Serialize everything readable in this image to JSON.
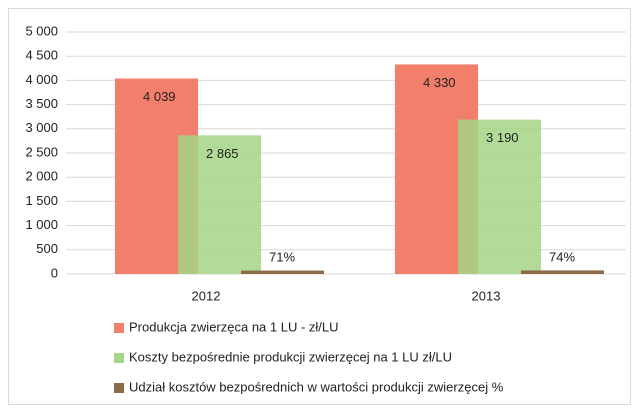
{
  "chart_data": {
    "type": "bar",
    "categories": [
      "2012",
      "2013"
    ],
    "series": [
      {
        "name": "Produkcja zwierzęca na 1 LU - zł/LU",
        "color": "#f27e6c",
        "values": [
          4039,
          4330
        ],
        "value_labels": [
          "4 039",
          "4 330"
        ]
      },
      {
        "name": "Koszty bezpośrednie produkcji zwierzęcej na 1 LU zł/LU",
        "color": "#a6d586",
        "values": [
          2865,
          3190
        ],
        "value_labels": [
          "2 865",
          "3 190"
        ]
      },
      {
        "name": "Udział kosztów bezpośrednich w wartości produkcji zwierzęcej %",
        "color": "#8b6a45",
        "values": [
          71,
          74
        ],
        "value_labels": [
          "71%",
          "74%"
        ]
      }
    ],
    "ylim": [
      0,
      5000
    ],
    "yticks": [
      0,
      500,
      {
        "value": 1000,
        "label": "1 000"
      },
      {
        "value": 1500,
        "label": "1 500"
      },
      {
        "value": 2000,
        "label": "2 000"
      },
      {
        "value": 2500,
        "label": "2 500"
      },
      {
        "value": 3000,
        "label": "3 000"
      },
      {
        "value": 3500,
        "label": "3 500"
      },
      {
        "value": 4000,
        "label": "4 000"
      },
      {
        "value": 4500,
        "label": "4 500"
      },
      {
        "value": 5000,
        "label": "5 000"
      }
    ],
    "grid": true,
    "legend": "bottom"
  }
}
